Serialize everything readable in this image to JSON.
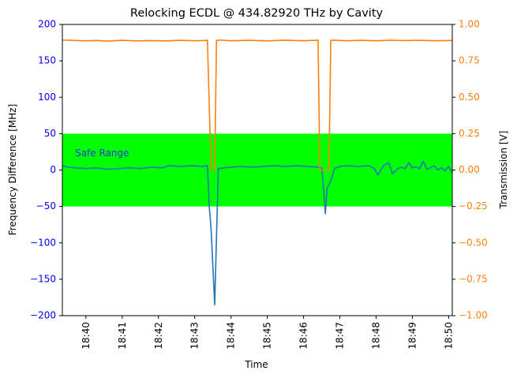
{
  "chart_data": {
    "type": "line",
    "title": "Relocking ECDL @ 434.82920 THz by Cavity",
    "xlabel": "Time",
    "ylabel_left": "Frequency Difference [MHz]",
    "ylabel_right": "Transmission [V]",
    "x_unit": "minutes since 18:00",
    "xlim": [
      39.35,
      50.1
    ],
    "ylim_left": [
      -200,
      200
    ],
    "ylim_right": [
      -1.0,
      1.0
    ],
    "x_ticks": [
      {
        "value": 40,
        "label": "18:40"
      },
      {
        "value": 41,
        "label": "18:41"
      },
      {
        "value": 42,
        "label": "18:42"
      },
      {
        "value": 43,
        "label": "18:43"
      },
      {
        "value": 44,
        "label": "18:44"
      },
      {
        "value": 45,
        "label": "18:45"
      },
      {
        "value": 46,
        "label": "18:46"
      },
      {
        "value": 47,
        "label": "18:47"
      },
      {
        "value": 48,
        "label": "18:48"
      },
      {
        "value": 49,
        "label": "18:49"
      },
      {
        "value": 50,
        "label": "18:50"
      }
    ],
    "y_ticks_left": [
      {
        "value": 200,
        "label": "200"
      },
      {
        "value": 150,
        "label": "150"
      },
      {
        "value": 100,
        "label": "100"
      },
      {
        "value": 50,
        "label": "50"
      },
      {
        "value": 0,
        "label": "0"
      },
      {
        "value": -50,
        "label": "−50"
      },
      {
        "value": -100,
        "label": "−100"
      },
      {
        "value": -150,
        "label": "−150"
      },
      {
        "value": -200,
        "label": "−200"
      }
    ],
    "y_ticks_right": [
      {
        "value": 1.0,
        "label": "1.00"
      },
      {
        "value": 0.75,
        "label": "0.75"
      },
      {
        "value": 0.5,
        "label": "0.50"
      },
      {
        "value": 0.25,
        "label": "0.25"
      },
      {
        "value": 0.0,
        "label": "0.00"
      },
      {
        "value": -0.25,
        "label": "−0.25"
      },
      {
        "value": -0.5,
        "label": "−0.50"
      },
      {
        "value": -0.75,
        "label": "−0.75"
      },
      {
        "value": -1.0,
        "label": "−1.00"
      }
    ],
    "safe_range": {
      "label": "Safe Range",
      "ymin": -50,
      "ymax": 50,
      "label_x": 39.7,
      "label_y": 23
    },
    "series": [
      {
        "name": "Frequency Difference",
        "axis": "left",
        "x": [
          39.35,
          39.5,
          39.7,
          40.0,
          40.3,
          40.6,
          40.9,
          41.2,
          41.5,
          41.8,
          42.1,
          42.3,
          42.6,
          42.9,
          43.2,
          43.35,
          43.4,
          43.45,
          43.55,
          43.65,
          43.8,
          44.0,
          44.3,
          44.6,
          44.9,
          45.2,
          45.5,
          45.8,
          46.1,
          46.4,
          46.5,
          46.55,
          46.6,
          46.65,
          46.75,
          46.85,
          47.0,
          47.2,
          47.5,
          47.8,
          47.95,
          48.05,
          48.2,
          48.35,
          48.45,
          48.5,
          48.6,
          48.7,
          48.8,
          48.9,
          49.0,
          49.1,
          49.2,
          49.3,
          49.4,
          49.5,
          49.6,
          49.7,
          49.8,
          49.9,
          50.0,
          50.1
        ],
        "y": [
          6,
          4,
          3,
          2,
          3,
          1,
          2,
          3,
          2,
          4,
          3,
          6,
          5,
          6,
          5,
          6,
          -50,
          -80,
          -185,
          2,
          3,
          4,
          5,
          4,
          5,
          6,
          5,
          6,
          5,
          4,
          3,
          -25,
          -60,
          -25,
          -15,
          2,
          5,
          6,
          5,
          6,
          2,
          -7,
          6,
          10,
          -5,
          -3,
          2,
          4,
          2,
          10,
          3,
          4,
          2,
          12,
          1,
          3,
          6,
          0,
          3,
          -1,
          5,
          -4
        ],
        "color": "#1f77b4"
      },
      {
        "name": "Transmission",
        "axis": "right",
        "x": [
          39.35,
          39.7,
          40.0,
          40.3,
          40.6,
          41.0,
          41.4,
          41.8,
          42.2,
          42.6,
          43.0,
          43.3,
          43.35,
          43.45,
          43.55,
          43.6,
          43.7,
          44.0,
          44.5,
          45.0,
          45.5,
          46.0,
          46.4,
          46.45,
          46.55,
          46.7,
          46.75,
          46.85,
          47.2,
          47.6,
          48.0,
          48.4,
          48.8,
          49.2,
          49.6,
          50.1
        ],
        "y": [
          0.893,
          0.89,
          0.888,
          0.89,
          0.886,
          0.891,
          0.887,
          0.889,
          0.887,
          0.891,
          0.888,
          0.89,
          0.892,
          0.0,
          0.0,
          0.89,
          0.893,
          0.888,
          0.891,
          0.887,
          0.892,
          0.888,
          0.892,
          0.0,
          0.0,
          0.0,
          0.89,
          0.892,
          0.888,
          0.891,
          0.888,
          0.892,
          0.889,
          0.891,
          0.888,
          0.89
        ],
        "color": "#ff7f0e"
      }
    ],
    "colors": {
      "safe_band": "#00ff00",
      "left_axis": "#0000ff",
      "right_axis": "#ff7f0e",
      "safe_label": "#1f3fd0"
    }
  }
}
